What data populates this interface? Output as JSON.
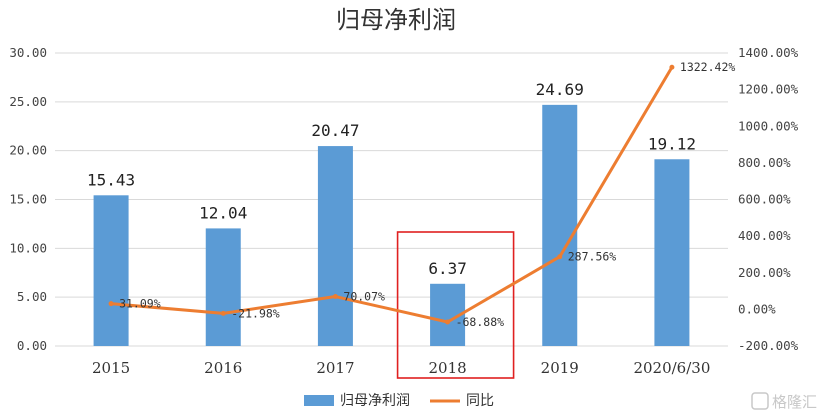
{
  "chart_data": {
    "type": "bar",
    "title": "归母净利润",
    "categories": [
      "2015",
      "2016",
      "2017",
      "2018",
      "2019",
      "2020/6/30"
    ],
    "ylim": [
      0,
      30
    ],
    "y_ticks": [
      "0.00",
      "5.00",
      "10.00",
      "15.00",
      "20.00",
      "25.00",
      "30.00"
    ],
    "y2lim": [
      -200,
      1400
    ],
    "y2_ticks": [
      "-200.00%",
      "0.00%",
      "200.00%",
      "400.00%",
      "600.00%",
      "800.00%",
      "1000.00%",
      "1200.00%",
      "1400.00%"
    ],
    "grid": true,
    "legend_position": "bottom",
    "series": [
      {
        "name": "归母净利润",
        "type": "bar",
        "axis": "left",
        "color": "#5b9bd5",
        "values": [
          15.43,
          12.04,
          20.47,
          6.37,
          24.69,
          19.12
        ],
        "labels": [
          "15.43",
          "12.04",
          "20.47",
          "6.37",
          "24.69",
          "19.12"
        ]
      },
      {
        "name": "同比",
        "type": "line",
        "axis": "right",
        "color": "#ed7d31",
        "values": [
          31.09,
          -21.98,
          70.07,
          -68.88,
          287.56,
          1322.42
        ],
        "labels": [
          "31.09%",
          "-21.98%",
          "70.07%",
          "-68.88%",
          "287.56%",
          "1322.42%"
        ]
      }
    ],
    "highlight": {
      "category": "2018",
      "color": "#e02020"
    }
  },
  "watermark": {
    "text": "格隆汇"
  }
}
